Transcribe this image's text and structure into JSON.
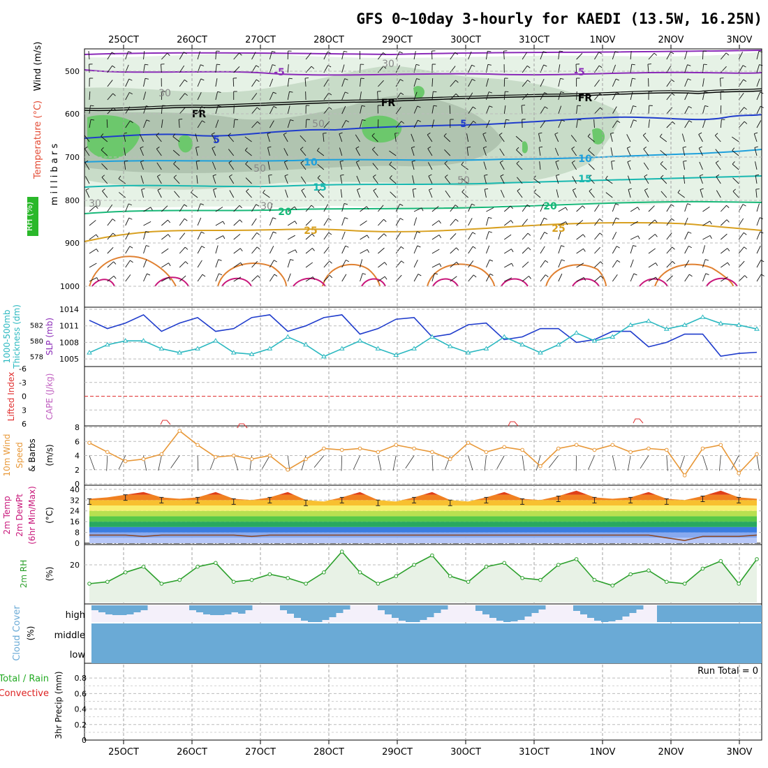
{
  "title": "GFS 0~10day 3-hourly for KAEDI (13.5W, 16.25N)",
  "date_labels": [
    "25OCT",
    "26OCT",
    "27OCT",
    "28OCT",
    "29OCT",
    "30OCT",
    "31OCT",
    "1NOV",
    "2NOV",
    "3NOV"
  ],
  "colors": {
    "rh_fill_light": "#e6f2e6",
    "rh_fill_mid": "#c8dcc8",
    "rh_fill_dark": "#b0c4b0",
    "rh_fill_green": "#6cc86c",
    "wind_barb": "#000000",
    "slp": "#1f3ccc",
    "thickness": "#2ab8c0",
    "lifted_index": "#e03030",
    "cape": "#c060c0",
    "wind10m": "#e89838",
    "cloud": "#6aaad6",
    "cloud_bg": "#f4f0fa",
    "rh2m": "#2ca02c",
    "rh2m_fill": "#e8f2e6",
    "precip_total": "#22aa22",
    "precip_conv": "#dd2222"
  },
  "panels": {
    "upper": {
      "ylabel_wind": "Wind (m/s)",
      "ylabel_temp": "Temperature (°C)",
      "ylabel_rh": "RH (%)",
      "ylabel_p": "m i l l i b a r s",
      "yticks": [
        "500",
        "600",
        "700",
        "800",
        "900",
        "1000"
      ],
      "contour_labels": [
        "-5",
        "-5",
        "FR",
        "FR",
        "FR",
        "5",
        "5",
        "10",
        "10",
        "15",
        "15",
        "20",
        "20",
        "25",
        "25",
        "30",
        "30",
        "30",
        "30",
        "50",
        "50",
        "50"
      ]
    },
    "slp": {
      "ylabel_a": "1000-500mb",
      "ylabel_b": "Thickness (dm)",
      "ylabel_c": "SLP (mb)",
      "left_ticks": [
        "582",
        "580",
        "578"
      ],
      "right_ticks": [
        "1014",
        "1011",
        "1008",
        "1005"
      ]
    },
    "li": {
      "ylabel_li": "Lifted Index",
      "ylabel_cape": "CAPE (J/kg)",
      "left_ticks": [
        "-6",
        "-3",
        "0",
        "3",
        "6"
      ]
    },
    "wind10": {
      "ylabel_a": "10m Wind",
      "ylabel_b": "Speed",
      "ylabel_c": "& Barbs",
      "ylabel_d": "(m/s)",
      "left_ticks": [
        "8",
        "6",
        "4",
        "2",
        "0"
      ]
    },
    "temp2m": {
      "ylabel_a": "2m Temp",
      "ylabel_b": "2m DewPt",
      "ylabel_c": "(6hr Min/Max)",
      "ylabel_d": "(°C)",
      "left_ticks": [
        "40",
        "32",
        "24",
        "16",
        "8",
        "0"
      ]
    },
    "rh2m": {
      "ylabel_a": "2m RH",
      "ylabel_b": "(%)",
      "left_ticks": [
        "20"
      ]
    },
    "cloud": {
      "ylabel_a": "Cloud Cover",
      "ylabel_b": "(%)",
      "levels": [
        "high",
        "middle",
        "low"
      ]
    },
    "precip": {
      "ylabel_a": "Total / Rain",
      "ylabel_b": "Convective",
      "ylabel_c": "3hr Precip (mm)",
      "left_ticks": [
        "0.8",
        "0.6",
        "0.4",
        "0.2",
        "0"
      ],
      "run_total": "Run Total = 0"
    }
  },
  "chart_data": [
    {
      "type": "line",
      "title": "SLP (mb)",
      "x": [
        "25OCT",
        "25OCT",
        "25OCT",
        "25OCT",
        "26OCT",
        "26OCT",
        "26OCT",
        "26OCT",
        "27OCT",
        "27OCT",
        "27OCT",
        "27OCT",
        "28OCT",
        "28OCT",
        "28OCT",
        "28OCT",
        "29OCT",
        "29OCT",
        "29OCT",
        "29OCT",
        "30OCT",
        "30OCT",
        "30OCT",
        "30OCT",
        "31OCT",
        "31OCT",
        "31OCT",
        "31OCT",
        "1NOV",
        "1NOV",
        "1NOV",
        "1NOV",
        "2NOV",
        "2NOV",
        "2NOV",
        "2NOV",
        "3NOV",
        "3NOV"
      ],
      "series": [
        {
          "name": "SLP (mb)",
          "values": [
            1012,
            1010.5,
            1011.5,
            1013,
            1010,
            1011.5,
            1012.5,
            1010,
            1010.5,
            1012.5,
            1013,
            1010,
            1011,
            1012.5,
            1013,
            1009.5,
            1010.5,
            1012.2,
            1012.5,
            1009,
            1009.5,
            1011.2,
            1011.5,
            1008.5,
            1009,
            1010.5,
            1010.5,
            1008,
            1008.5,
            1010,
            1010,
            1007.2,
            1008,
            1009.5,
            1009.5,
            1005.5,
            1006,
            1006.2
          ]
        }
      ],
      "ylim": [
        1004,
        1014
      ]
    },
    {
      "type": "line",
      "title": "1000-500mb Thickness (dm)",
      "series": [
        {
          "name": "1000-500mb Thickness (dm)",
          "values": [
            578.5,
            579.5,
            580,
            580,
            579,
            578.5,
            579,
            580,
            578.5,
            578.3,
            579,
            580.5,
            579.5,
            578,
            579,
            580,
            579,
            578.2,
            579,
            580.5,
            579.3,
            578.5,
            579,
            580.5,
            579.5,
            578.5,
            579.5,
            581,
            580,
            580.5,
            582,
            582.5,
            581.5,
            582,
            583,
            582.2,
            582,
            581.5
          ]
        }
      ],
      "ylim": [
        577,
        584
      ]
    },
    {
      "type": "line",
      "title": "10m Wind Speed (m/s)",
      "series": [
        {
          "name": "10m Wind Speed (m/s)",
          "values": [
            5.8,
            4.5,
            3.2,
            3.5,
            4.2,
            7.5,
            5.5,
            3.8,
            4,
            3.5,
            4,
            2,
            3.5,
            5,
            4.8,
            5,
            4.5,
            5.5,
            5,
            4.5,
            3.5,
            5.8,
            4.5,
            5.2,
            4.8,
            2.5,
            5,
            5.5,
            4.8,
            5.5,
            4.5,
            5,
            4.8,
            1.2,
            5,
            5.5,
            1.5,
            4.2
          ]
        }
      ],
      "ylim": [
        0,
        8
      ]
    },
    {
      "type": "area",
      "title": "2m Temp (°C)",
      "series": [
        {
          "name": "2m Temp max",
          "values": [
            33,
            34,
            36,
            38,
            34,
            33,
            34,
            38,
            33,
            32,
            34,
            38,
            32,
            31,
            34,
            38,
            32,
            31,
            34,
            38,
            32,
            31,
            34,
            38,
            33,
            32,
            35,
            39,
            34,
            33,
            34,
            38,
            33,
            32,
            35,
            39,
            34,
            33
          ]
        },
        {
          "name": "2m DewPt",
          "values": [
            6,
            6,
            6,
            5,
            6,
            6,
            6,
            6,
            6,
            5,
            6,
            6,
            6,
            6,
            6,
            6,
            6,
            6,
            6,
            6,
            6,
            6,
            6,
            6,
            6,
            6,
            6,
            6,
            6,
            6,
            6,
            6,
            4,
            2,
            5,
            5,
            5,
            6
          ]
        }
      ],
      "ylim": [
        0,
        42
      ]
    },
    {
      "type": "area",
      "title": "2m RH (%)",
      "series": [
        {
          "name": "2m RH (%)",
          "values": [
            10,
            11,
            16,
            19,
            10,
            12,
            19,
            21,
            11,
            12,
            15,
            13,
            10,
            16,
            27,
            16,
            10,
            14,
            20,
            25,
            14,
            11,
            19,
            21,
            13,
            12,
            20,
            23,
            12,
            9,
            15,
            17,
            11,
            10,
            18,
            22,
            10,
            23
          ]
        }
      ],
      "ylim": [
        0,
        30
      ]
    },
    {
      "type": "bar",
      "title": "3hr Precip (mm)",
      "series": [
        {
          "name": "Total / Rain",
          "values": [
            0,
            0,
            0,
            0,
            0,
            0,
            0,
            0,
            0,
            0
          ]
        },
        {
          "name": "Convective",
          "values": [
            0,
            0,
            0,
            0,
            0,
            0,
            0,
            0,
            0,
            0
          ]
        }
      ],
      "ylim": [
        0,
        0.9
      ]
    }
  ]
}
